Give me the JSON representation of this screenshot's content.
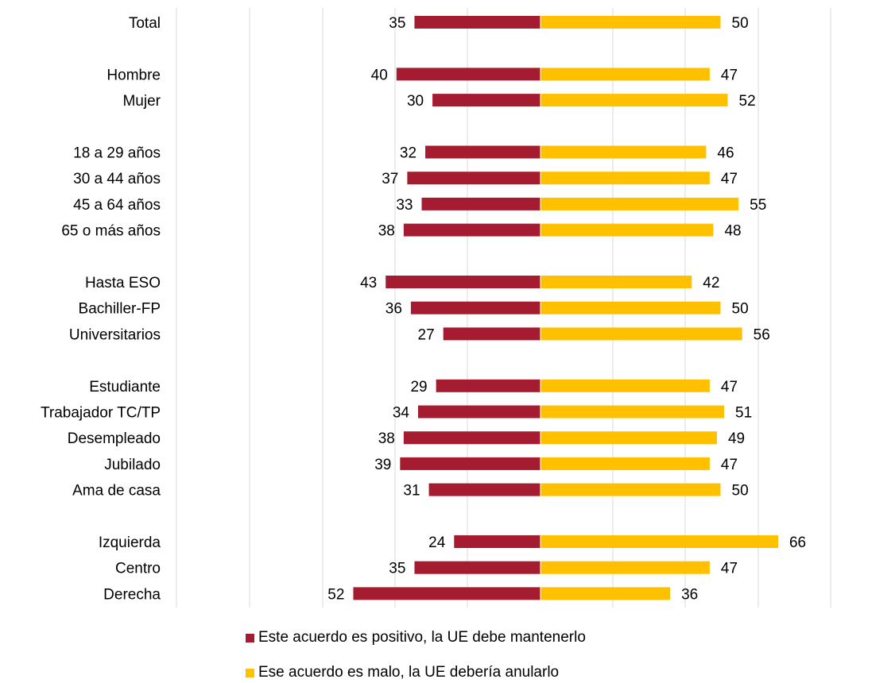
{
  "chart_data": {
    "type": "bar",
    "orientation": "horizontal-diverging",
    "grid": true,
    "legend_position": "bottom",
    "categories": [
      "Total",
      "",
      "Hombre",
      "Mujer",
      "",
      "18 a 29 años",
      "30 a 44 años",
      "45 a 64 años",
      "65 o más años",
      "",
      "Hasta ESO",
      "Bachiller-FP",
      "Universitarios",
      "",
      "Estudiante",
      "Trabajador TC/TP",
      "Desempleado",
      "Jubilado",
      "Ama de casa",
      "",
      "Izquierda",
      "Centro",
      "Derecha"
    ],
    "series": [
      {
        "name": "Este acuerdo es positivo, la UE debe mantenerlo",
        "color": "#A51C30",
        "values": [
          35,
          null,
          40,
          30,
          null,
          32,
          37,
          33,
          38,
          null,
          43,
          36,
          27,
          null,
          29,
          34,
          38,
          39,
          31,
          null,
          24,
          35,
          52
        ]
      },
      {
        "name": "Ese acuerdo es malo, la UE debería anularlo",
        "color": "#FFC000",
        "values": [
          50,
          null,
          47,
          52,
          null,
          46,
          47,
          55,
          48,
          null,
          42,
          50,
          56,
          null,
          47,
          51,
          49,
          47,
          50,
          null,
          66,
          47,
          36
        ]
      }
    ]
  }
}
